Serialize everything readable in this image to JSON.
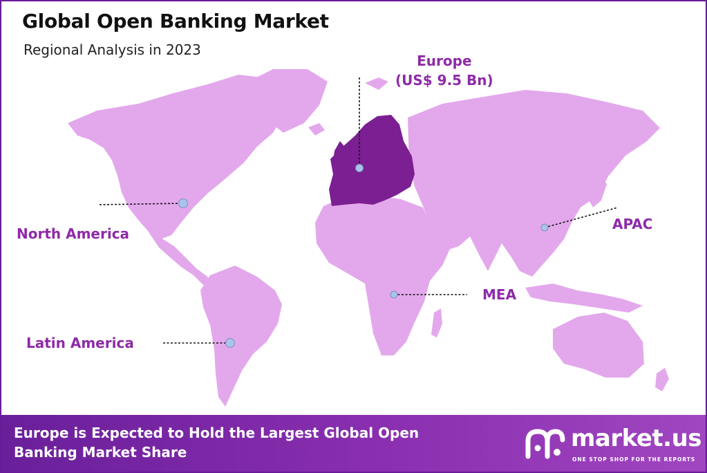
{
  "header": {
    "title": "Global Open Banking Market",
    "subtitle": "Regional Analysis in 2023"
  },
  "map": {
    "land_color": "#e3a8ec",
    "highlight_color": "#7b1f93",
    "marker_color": "#a9c4ec",
    "regions": {
      "europe": {
        "name": "Europe",
        "value": "(US$ 9.5 Bn)"
      },
      "north_america": {
        "name": "North America"
      },
      "latin_america": {
        "name": "Latin America"
      },
      "mea": {
        "name": "MEA"
      },
      "apac": {
        "name": "APAC"
      }
    }
  },
  "footer": {
    "headline": "Europe is Expected to Hold the Largest Global Open Banking Market Share",
    "brand_name": "market.us",
    "brand_tagline": "ONE STOP SHOP FOR THE REPORTS"
  }
}
